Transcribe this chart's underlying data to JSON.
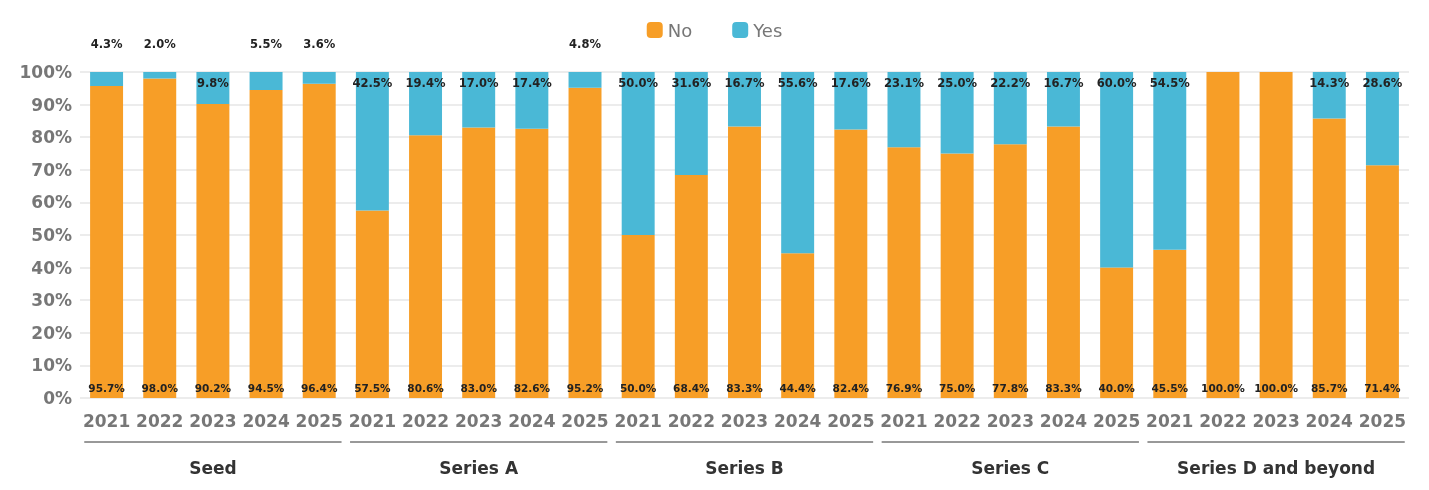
{
  "chart_data": {
    "type": "bar",
    "stacked": true,
    "categories": [
      "2021",
      "2022",
      "2023",
      "2024",
      "2025",
      "2021",
      "2022",
      "2023",
      "2024",
      "2025",
      "2021",
      "2022",
      "2023",
      "2024",
      "2025",
      "2021",
      "2022",
      "2023",
      "2024",
      "2025",
      "2021",
      "2022",
      "2023",
      "2024",
      "2025"
    ],
    "series": [
      {
        "name": "No",
        "color": "#f79e27",
        "values": [
          95.7,
          98.0,
          90.2,
          94.5,
          96.4,
          57.5,
          80.6,
          83.0,
          82.6,
          95.2,
          50.0,
          68.4,
          83.3,
          44.4,
          82.4,
          76.9,
          75.0,
          77.8,
          83.3,
          40.0,
          45.5,
          100.0,
          100.0,
          85.7,
          71.4
        ],
        "value_labels": [
          "95.7%",
          "98.0%",
          "90.2%",
          "94.5%",
          "96.4%",
          "57.5%",
          "80.6%",
          "83.0%",
          "82.6%",
          "95.2%",
          "50.0%",
          "68.4%",
          "83.3%",
          "44.4%",
          "82.4%",
          "76.9%",
          "75.0%",
          "77.8%",
          "83.3%",
          "40.0%",
          "45.5%",
          "100.0%",
          "100.0%",
          "85.7%",
          "71.4%"
        ]
      },
      {
        "name": "Yes",
        "color": "#4ab8d6",
        "values": [
          4.3,
          2.0,
          9.8,
          5.5,
          3.6,
          42.5,
          19.4,
          17.0,
          17.4,
          4.8,
          50.0,
          31.6,
          16.7,
          55.6,
          17.6,
          23.1,
          25.0,
          22.2,
          16.7,
          60.0,
          54.5,
          0,
          0,
          14.3,
          28.6
        ],
        "value_labels": [
          "4.3%",
          "2.0%",
          "9.8%",
          "5.5%",
          "3.6%",
          "42.5%",
          "19.4%",
          "17.0%",
          "17.4%",
          "4.8%",
          "50.0%",
          "31.6%",
          "16.7%",
          "55.6%",
          "17.6%",
          "23.1%",
          "25.0%",
          "22.2%",
          "16.7%",
          "60.0%",
          "54.5%",
          null,
          null,
          "14.3%",
          "28.6%"
        ]
      }
    ],
    "ylim": [
      0,
      100
    ],
    "yticks": [
      {
        "value": 0,
        "label": "0%"
      },
      {
        "value": 10,
        "label": "10%"
      },
      {
        "value": 20,
        "label": "20%"
      },
      {
        "value": 30,
        "label": "30%"
      },
      {
        "value": 40,
        "label": "40%"
      },
      {
        "value": 50,
        "label": "50%"
      },
      {
        "value": 60,
        "label": "60%"
      },
      {
        "value": 70,
        "label": "70%"
      },
      {
        "value": 80,
        "label": "80%"
      },
      {
        "value": 90,
        "label": "90%"
      },
      {
        "value": 100,
        "label": "100%"
      }
    ],
    "grid": "y",
    "legend": "top",
    "annotations": [
      "Seed",
      "Series A",
      "Series B",
      "Series C",
      "Series D and beyond"
    ]
  }
}
